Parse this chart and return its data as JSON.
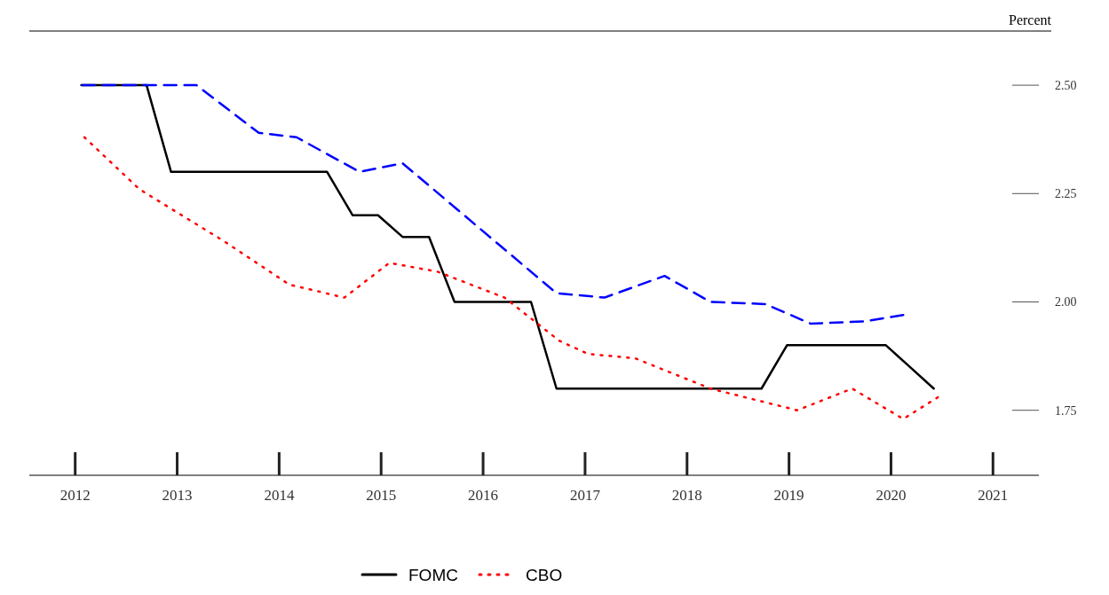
{
  "chart_data": {
    "type": "line",
    "ylabel": "Percent",
    "xlim": [
      2011.55,
      2021.45
    ],
    "xticks": [
      2012,
      2013,
      2014,
      2015,
      2016,
      2017,
      2018,
      2019,
      2020,
      2021
    ],
    "ylim": [
      1.6,
      2.625
    ],
    "yticks": [
      {
        "value": 1.75,
        "label": "1.75"
      },
      {
        "value": 2,
        "label": "2.00"
      },
      {
        "value": 2.25,
        "label": "2.25"
      },
      {
        "value": 2.5,
        "label": "2.50"
      }
    ],
    "grid": false,
    "legend": "bottom",
    "series": [
      {
        "name": "FOMC",
        "color": "#000000",
        "line_style": "solid",
        "x": [
          2012.06,
          2012.7,
          2012.94,
          2014.47,
          2014.72,
          2014.97,
          2015.21,
          2015.47,
          2015.72,
          2016.47,
          2016.72,
          2018.73,
          2018.98,
          2019.95,
          2020.42
        ],
        "values": [
          2.5,
          2.5,
          2.3,
          2.3,
          2.2,
          2.2,
          2.15,
          2.15,
          2.0,
          2.0,
          1.8,
          1.8,
          1.9,
          1.9,
          1.8
        ]
      },
      {
        "color": "#0000ff",
        "line_style": "dashed",
        "x": [
          2012.07,
          2013.19,
          2013.8,
          2014.17,
          2014.79,
          2015.21,
          2016.72,
          2017.19,
          2017.78,
          2018.23,
          2018.77,
          2019.21,
          2019.74,
          2020.12
        ],
        "values": [
          2.5,
          2.5,
          2.39,
          2.38,
          2.3,
          2.32,
          2.02,
          2.01,
          2.06,
          2.0,
          1.995,
          1.95,
          1.955,
          1.97
        ]
      },
      {
        "name": "CBO",
        "color": "#ff0000",
        "line_style": "dotted",
        "x": [
          2012.09,
          2012.63,
          2013.46,
          2014.1,
          2014.64,
          2015.08,
          2015.55,
          2016.21,
          2016.75,
          2017.03,
          2017.49,
          2018.23,
          2019.08,
          2019.62,
          2020.12,
          2020.46
        ],
        "values": [
          2.38,
          2.26,
          2.14,
          2.04,
          2.01,
          2.09,
          2.07,
          2.01,
          1.91,
          1.88,
          1.87,
          1.8,
          1.75,
          1.8,
          1.73,
          1.78
        ]
      }
    ]
  }
}
